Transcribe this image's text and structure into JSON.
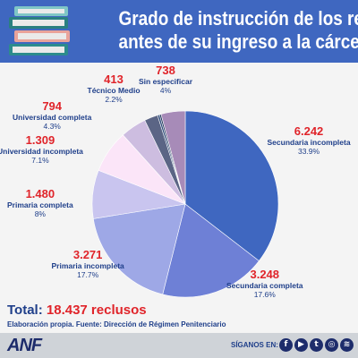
{
  "title": {
    "line1": "Grado de instrucción de los reclusos",
    "line2": "antes de su ingreso a la cárcel"
  },
  "chart_data": {
    "type": "pie",
    "series": [
      {
        "category": "Secundaria incompleta",
        "value": 6242,
        "value_label": "6.242",
        "percent": "33.9%",
        "color": "#3f67c0"
      },
      {
        "category": "Secundaria completa",
        "value": 3248,
        "value_label": "3.248",
        "percent": "17.6%",
        "color": "#6e80d6"
      },
      {
        "category": "Primaria incompleta",
        "value": 3271,
        "value_label": "3.271",
        "percent": "17.7%",
        "color": "#9ea8e6"
      },
      {
        "category": "Primaria completa",
        "value": 1480,
        "value_label": "1.480",
        "percent": "8%",
        "color": "#c9c5ef"
      },
      {
        "category": "Universidad incompleta",
        "value": 1309,
        "value_label": "1.309",
        "percent": "7.1%",
        "color": "#fbe5f8"
      },
      {
        "category": "Universidad completa",
        "value": 794,
        "value_label": "794",
        "percent": "4.3%",
        "color": "#cdbde0"
      },
      {
        "category": "Técnico Medio",
        "value": 413,
        "value_label": "413",
        "percent": "2.2%",
        "color": "#5b6585"
      },
      {
        "category": "Sin especificar",
        "value": 738,
        "value_label": "738",
        "percent": "4%",
        "color": "#a78bb8"
      }
    ],
    "extra_slices_colors": [
      "#2d4a7a",
      "#22385c"
    ],
    "start_direction": "top",
    "direction": "clockwise"
  },
  "total": {
    "label": "Total:",
    "value": "18.437 reclusos"
  },
  "source": "Elaboración propia. Fuente: Dirección de Régimen Penitenciario",
  "footer": {
    "logo": "ANF",
    "follow_label": "SÍGANOS EN:",
    "social_icons": [
      "facebook-icon",
      "youtube-icon",
      "twitter-icon",
      "instagram-icon",
      "spotify-icon"
    ]
  }
}
